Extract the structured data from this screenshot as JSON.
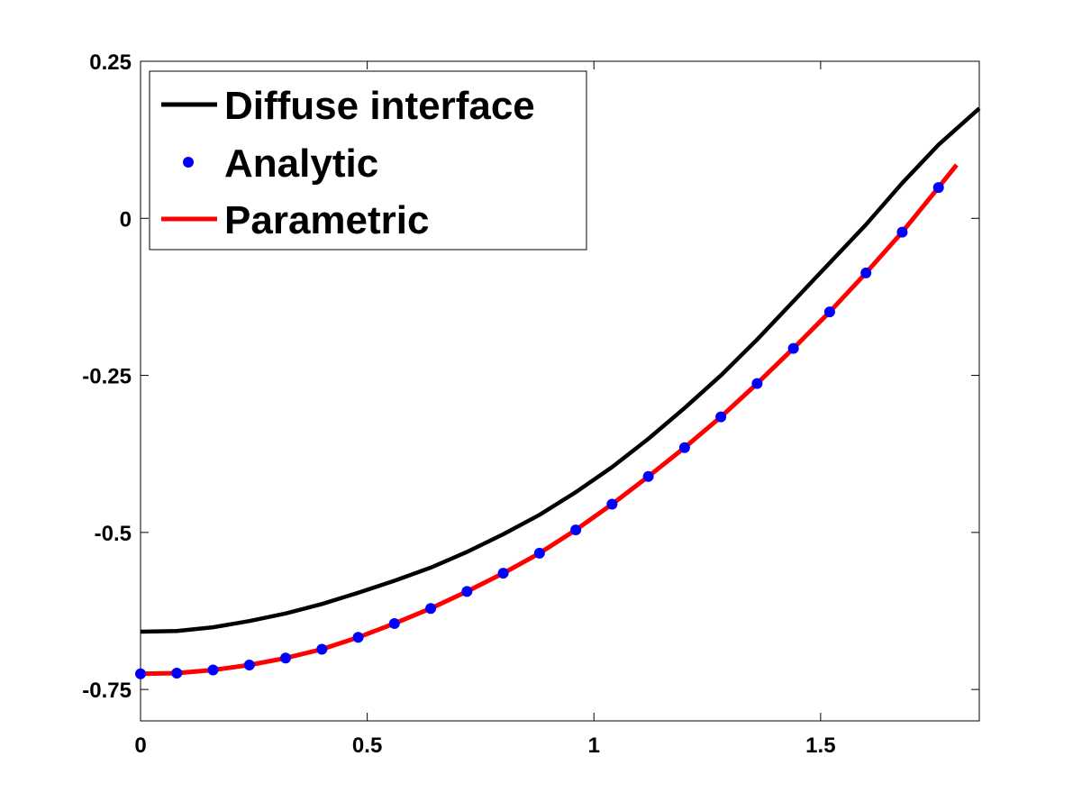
{
  "chart_data": {
    "type": "line",
    "title": "",
    "xlabel": "",
    "ylabel": "",
    "xlim": [
      0,
      1.85
    ],
    "ylim": [
      -0.8,
      0.25
    ],
    "x_ticks": [
      0,
      0.5,
      1,
      1.5
    ],
    "x_tick_labels": [
      "0",
      "0.5",
      "1",
      "1.5"
    ],
    "y_ticks": [
      0.25,
      0,
      -0.25,
      -0.5,
      -0.75
    ],
    "y_tick_labels": [
      "0.25",
      "0",
      "-0.25",
      "-0.5",
      "-0.75"
    ],
    "grid": false,
    "legend_position": "top-left",
    "series": [
      {
        "name": "Diffuse interface",
        "style": "line",
        "color": "#000000",
        "x": [
          0,
          0.08,
          0.16,
          0.24,
          0.32,
          0.4,
          0.48,
          0.56,
          0.64,
          0.72,
          0.8,
          0.88,
          0.96,
          1.04,
          1.12,
          1.2,
          1.28,
          1.36,
          1.44,
          1.52,
          1.6,
          1.68,
          1.76,
          1.85
        ],
        "y": [
          -0.658,
          -0.657,
          -0.651,
          -0.641,
          -0.629,
          -0.614,
          -0.596,
          -0.577,
          -0.556,
          -0.531,
          -0.503,
          -0.472,
          -0.436,
          -0.396,
          -0.351,
          -0.302,
          -0.25,
          -0.193,
          -0.132,
          -0.071,
          -0.01,
          0.056,
          0.117,
          0.175
        ]
      },
      {
        "name": "Analytic",
        "style": "markers",
        "color": "#0000ff",
        "x": [
          0,
          0.08,
          0.16,
          0.24,
          0.32,
          0.4,
          0.48,
          0.56,
          0.64,
          0.72,
          0.8,
          0.88,
          0.96,
          1.04,
          1.12,
          1.2,
          1.28,
          1.36,
          1.44,
          1.52,
          1.6,
          1.68,
          1.76
        ],
        "y": [
          -0.725,
          -0.724,
          -0.719,
          -0.711,
          -0.7,
          -0.686,
          -0.667,
          -0.645,
          -0.621,
          -0.594,
          -0.565,
          -0.533,
          -0.496,
          -0.455,
          -0.411,
          -0.365,
          -0.316,
          -0.263,
          -0.207,
          -0.149,
          -0.087,
          -0.022,
          0.049
        ]
      },
      {
        "name": "Parametric",
        "style": "line",
        "color": "#ff0000",
        "x": [
          0,
          0.08,
          0.16,
          0.24,
          0.32,
          0.4,
          0.48,
          0.56,
          0.64,
          0.72,
          0.8,
          0.88,
          0.96,
          1.04,
          1.12,
          1.2,
          1.28,
          1.36,
          1.44,
          1.52,
          1.6,
          1.68,
          1.76,
          1.8
        ],
        "y": [
          -0.725,
          -0.724,
          -0.719,
          -0.711,
          -0.7,
          -0.686,
          -0.667,
          -0.645,
          -0.621,
          -0.594,
          -0.565,
          -0.533,
          -0.496,
          -0.455,
          -0.411,
          -0.365,
          -0.316,
          -0.263,
          -0.207,
          -0.149,
          -0.087,
          -0.022,
          0.049,
          0.085
        ]
      }
    ]
  }
}
